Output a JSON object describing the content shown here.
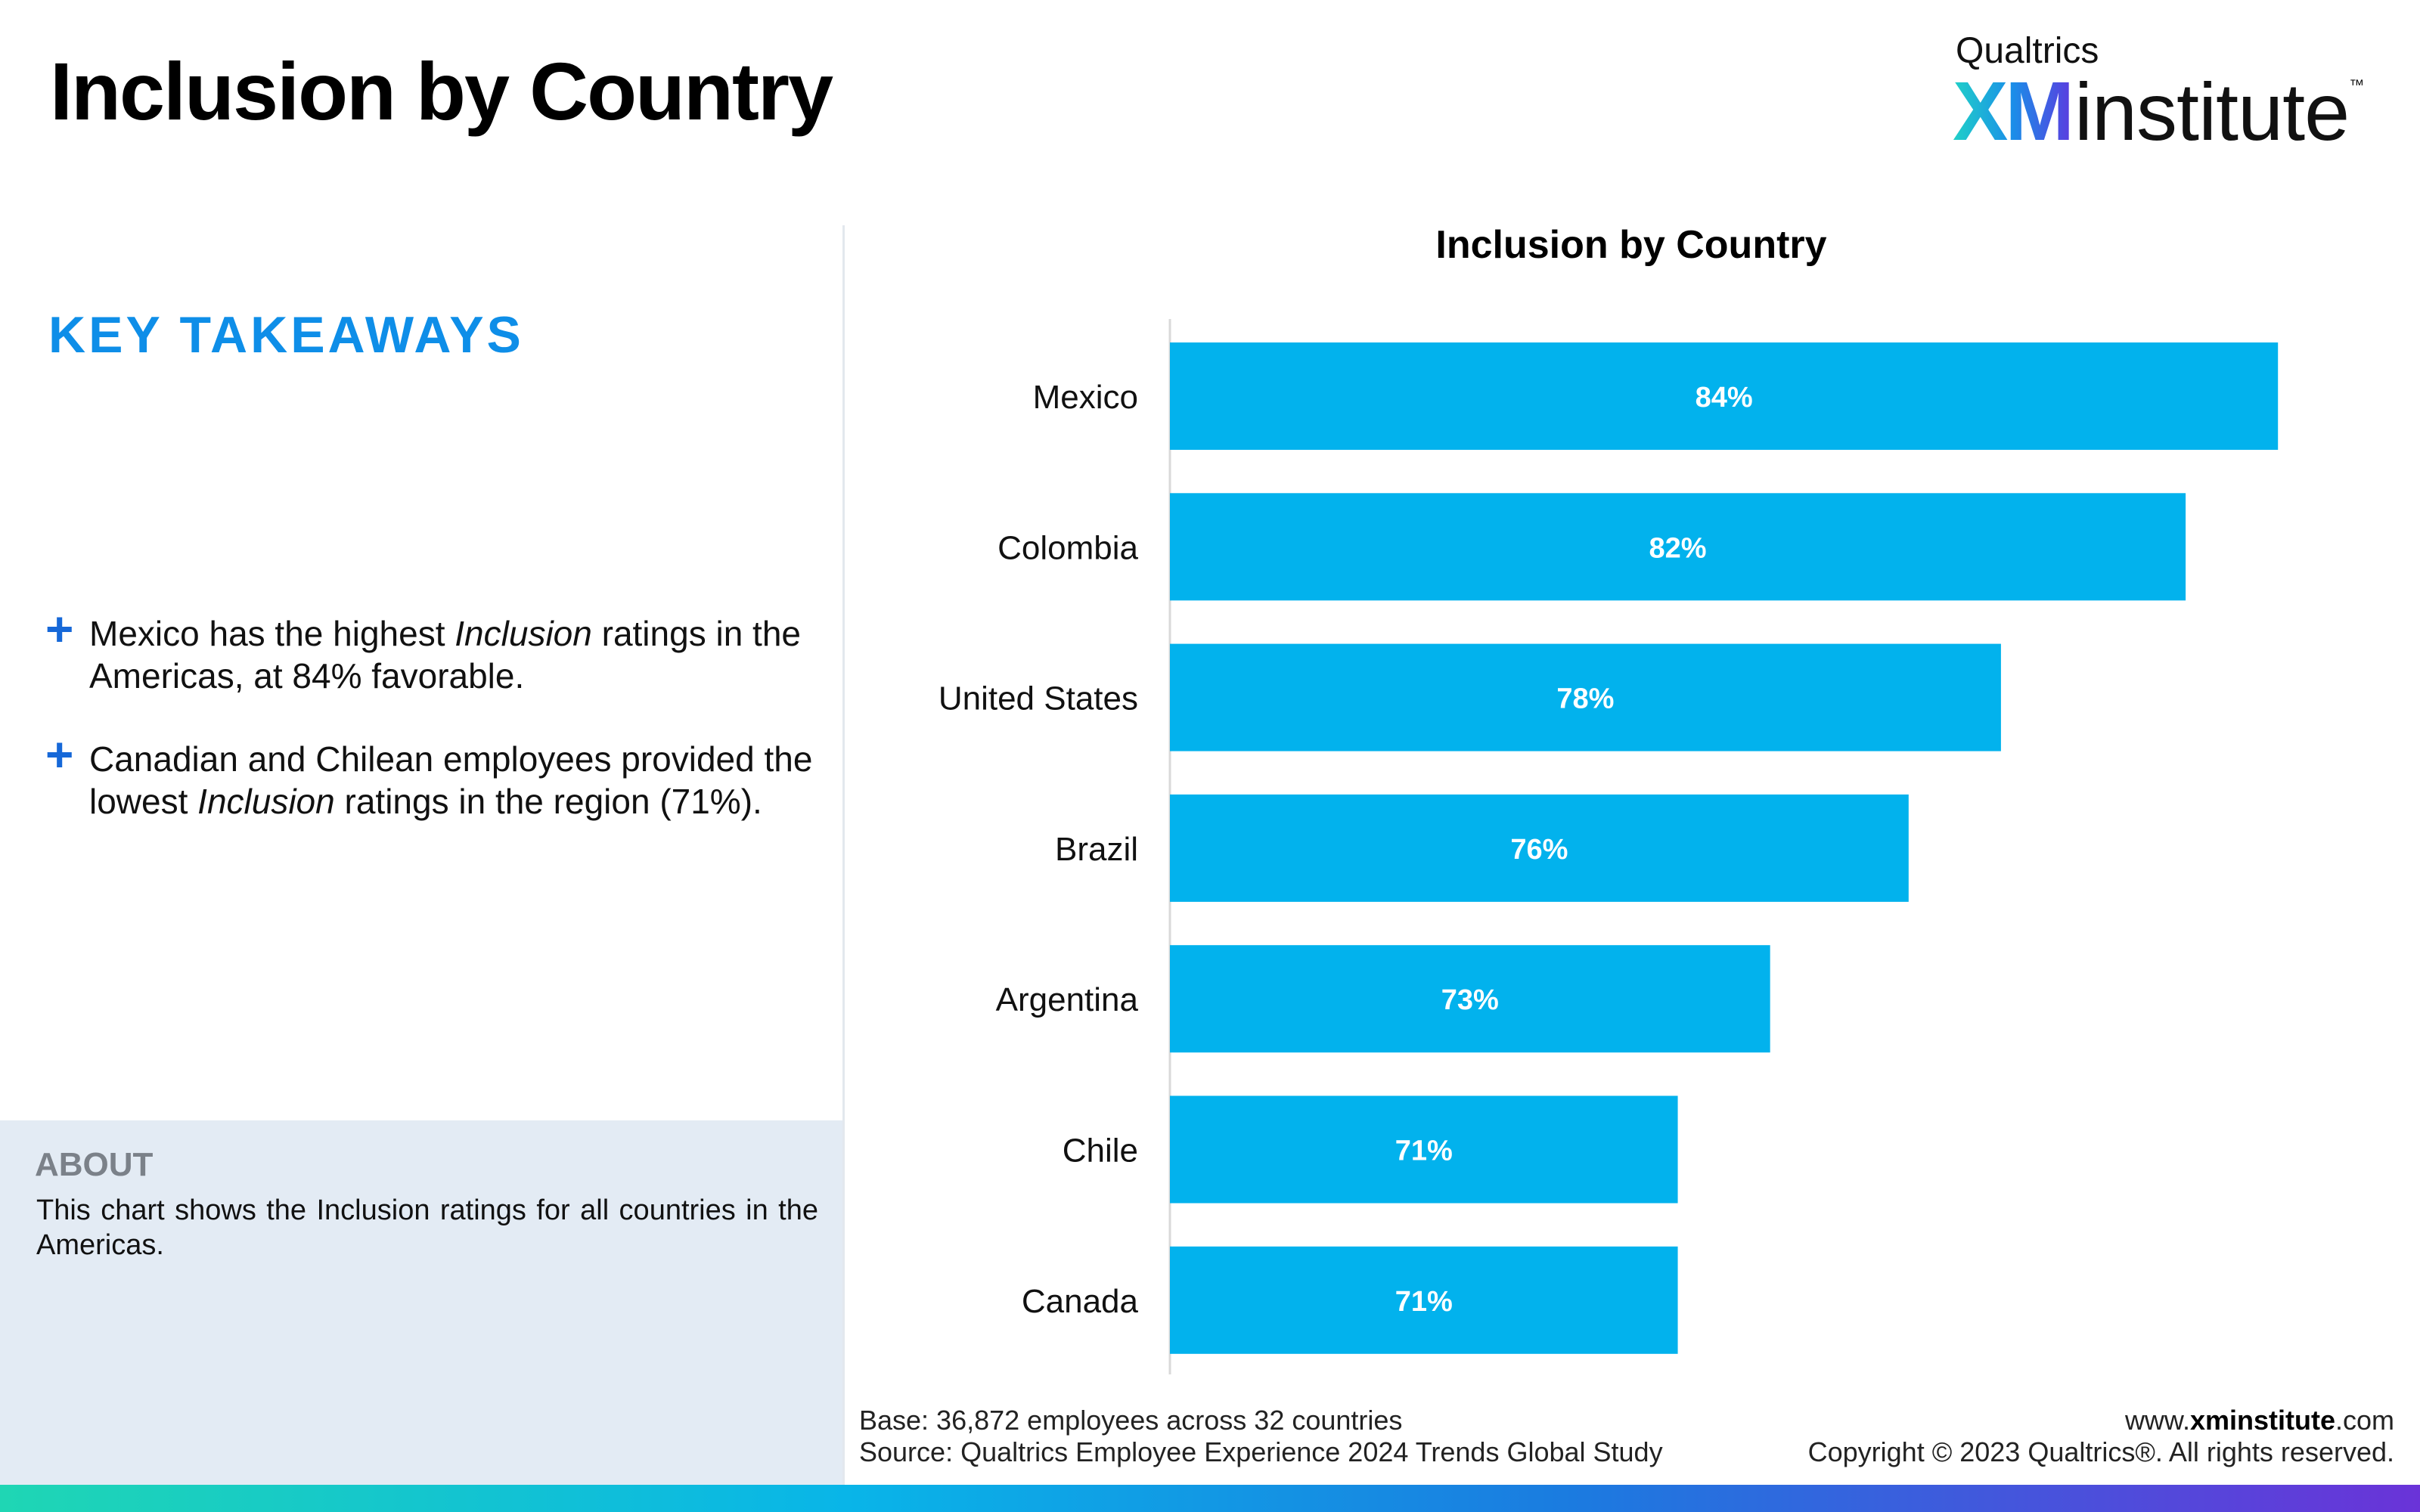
{
  "header": {
    "title": "Inclusion by Country",
    "logo_brand": "Qualtrics",
    "logo_xm": "XM",
    "logo_institute": "institute",
    "logo_tm": "™"
  },
  "takeaways": {
    "title": "KEY TAKEAWAYS",
    "bullet_symbol": "+",
    "items": [
      {
        "before": "Mexico has the highest ",
        "italic": "Inclusion",
        "after": " ratings in the Americas, at 84% favorable."
      },
      {
        "before": "Canadian and Chilean employees provided the lowest ",
        "italic": "Inclusion",
        "after": " ratings in the region (71%)."
      }
    ]
  },
  "about": {
    "title": "ABOUT",
    "text": "This chart shows the Inclusion ratings for all countries in the Americas."
  },
  "chart_data": {
    "type": "bar",
    "orientation": "horizontal",
    "title": "Inclusion by Country",
    "categories": [
      "Mexico",
      "Colombia",
      "United States",
      "Brazil",
      "Argentina",
      "Chile",
      "Canada"
    ],
    "values": [
      84,
      82,
      78,
      76,
      73,
      71,
      71
    ],
    "labels": [
      "84%",
      "82%",
      "78%",
      "76%",
      "73%",
      "71%",
      "71%"
    ],
    "xlim": [
      60,
      85
    ],
    "bar_color": "#02b2ed",
    "label_color": "#ffffff",
    "grid": false,
    "legend": false
  },
  "footer": {
    "base": "Base: 36,872 employees across 32 countries",
    "source": "Source: Qualtrics Employee Experience 2024 Trends Global Study",
    "url_prefix": "www.",
    "url_bold": "xminstitute",
    "url_suffix": ".com",
    "copyright": "Copyright © 2023 Qualtrics®. All rights reserved."
  },
  "colors": {
    "accent": "#0e8ee8",
    "plus": "#1668d8",
    "about_bg": "#e3ebf4",
    "bar": "#02b2ed"
  }
}
